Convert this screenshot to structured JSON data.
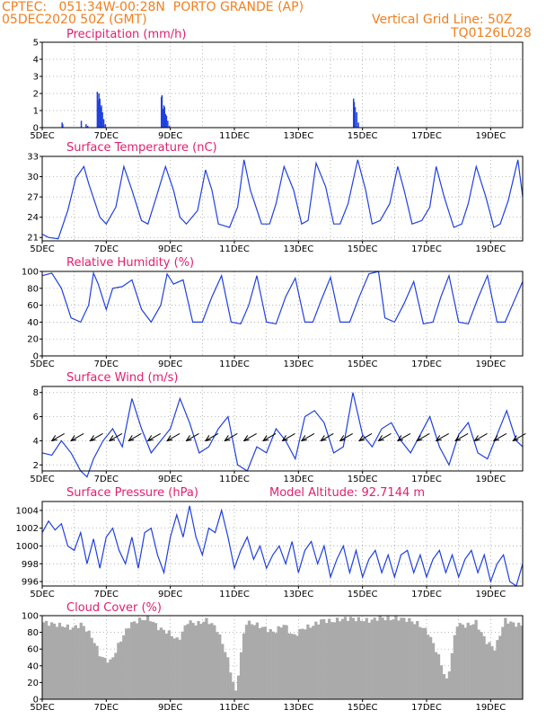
{
  "header": {
    "line1": "CPTEC:   051:34W-00:28N  PORTO GRANDE (AP)",
    "line2": "05DEC2020 50Z (GMT)",
    "grid_note": "Vertical Grid Line: 50Z",
    "code": "TQ0126L028"
  },
  "colors": {
    "header": "#f08020",
    "title": "#e0206f",
    "series": "#2040e0",
    "cloud": "#aaaaaa",
    "grid": "#999999"
  },
  "x_axis": {
    "start_day": 5,
    "end_day": 20,
    "tick_labels": [
      "5DEC",
      "7DEC",
      "9DEC",
      "11DEC",
      "13DEC",
      "15DEC",
      "17DEC",
      "19DEC"
    ]
  },
  "chart_data": [
    {
      "type": "bar",
      "title": "Precipitation (mm/h)",
      "ylim": [
        0,
        5
      ],
      "yticks": [
        0,
        1,
        2,
        3,
        4,
        5
      ],
      "series": [
        {
          "x": [
            5.6,
            5.62,
            6.2,
            6.35,
            6.4,
            6.7,
            6.72,
            6.75,
            6.78,
            6.8,
            6.83,
            6.86,
            6.9,
            6.95,
            8.7,
            8.72,
            8.75,
            8.78,
            8.8,
            8.83,
            8.86,
            8.9,
            8.95,
            14.7,
            14.72,
            14.75,
            14.8,
            14.85
          ],
          "values": [
            0.3,
            0.2,
            0.4,
            0.2,
            0.1,
            2.1,
            1.6,
            2.0,
            1.7,
            1.2,
            1.3,
            0.9,
            0.5,
            0.2,
            1.8,
            1.9,
            1.1,
            1.3,
            1.2,
            0.8,
            0.7,
            0.4,
            0.1,
            1.7,
            1.5,
            1.2,
            0.9,
            0.3
          ]
        }
      ]
    },
    {
      "type": "line",
      "title": "Surface Temperature (nC)",
      "ylim": [
        20.5,
        33
      ],
      "yticks": [
        21,
        24,
        27,
        30,
        33
      ],
      "series": [
        {
          "x": [
            5,
            5.2,
            5.5,
            5.8,
            6.05,
            6.3,
            6.45,
            6.8,
            7,
            7.3,
            7.55,
            7.8,
            8.1,
            8.3,
            8.5,
            8.85,
            9.1,
            9.3,
            9.5,
            9.85,
            10.1,
            10.3,
            10.5,
            10.85,
            11.1,
            11.3,
            11.5,
            11.85,
            12.1,
            12.3,
            12.55,
            12.85,
            13.1,
            13.3,
            13.55,
            13.85,
            14.1,
            14.3,
            14.55,
            14.85,
            15.1,
            15.3,
            15.55,
            15.85,
            16.1,
            16.3,
            16.55,
            16.85,
            17.1,
            17.3,
            17.55,
            17.85,
            18.1,
            18.3,
            18.55,
            18.85,
            19.1,
            19.3,
            19.55,
            19.85,
            20
          ],
          "values": [
            21.5,
            21,
            20.8,
            25,
            29.8,
            31.5,
            29,
            24,
            23,
            25.5,
            31.5,
            28,
            23.5,
            23,
            26,
            31.5,
            28,
            24,
            23,
            25,
            31,
            28,
            23,
            22.5,
            25.5,
            32.5,
            28,
            23,
            23,
            26,
            31.5,
            28,
            23,
            23.5,
            32,
            28.5,
            23,
            23,
            26,
            32.5,
            28,
            23,
            23.5,
            26,
            31.5,
            28,
            23,
            23.5,
            25.5,
            31.5,
            27,
            22.5,
            23,
            26,
            31.5,
            27,
            22.5,
            23,
            26.5,
            32.5,
            27
          ]
        }
      ]
    },
    {
      "type": "line",
      "title": "Relative Humidity (%)",
      "ylim": [
        0,
        100
      ],
      "yticks": [
        0,
        20,
        40,
        60,
        80,
        100
      ],
      "series": [
        {
          "x": [
            5,
            5.3,
            5.6,
            5.9,
            6.2,
            6.45,
            6.6,
            6.75,
            7,
            7.2,
            7.5,
            7.8,
            8.1,
            8.4,
            8.7,
            8.9,
            9.1,
            9.4,
            9.7,
            10,
            10.3,
            10.6,
            10.9,
            11.2,
            11.45,
            11.7,
            12,
            12.3,
            12.6,
            12.9,
            13.2,
            13.45,
            13.7,
            14,
            14.3,
            14.6,
            14.9,
            15.2,
            15.5,
            15.7,
            16,
            16.3,
            16.6,
            16.9,
            17.2,
            17.45,
            17.7,
            18,
            18.3,
            18.6,
            18.9,
            19.2,
            19.45,
            19.7,
            20
          ],
          "values": [
            95,
            98,
            80,
            45,
            40,
            60,
            98,
            85,
            55,
            80,
            82,
            90,
            55,
            40,
            60,
            97,
            85,
            90,
            40,
            40,
            70,
            95,
            40,
            38,
            60,
            95,
            40,
            38,
            70,
            92,
            40,
            40,
            65,
            93,
            40,
            40,
            70,
            97,
            100,
            45,
            40,
            62,
            88,
            38,
            40,
            70,
            95,
            40,
            38,
            68,
            95,
            40,
            40,
            62,
            88
          ]
        }
      ]
    },
    {
      "type": "line",
      "title": "Surface Wind (m/s)",
      "ylim": [
        1.5,
        8.5
      ],
      "yticks": [
        2,
        4,
        6,
        8
      ],
      "series": [
        {
          "x": [
            5,
            5.3,
            5.6,
            5.9,
            6.2,
            6.4,
            6.6,
            6.9,
            7.2,
            7.5,
            7.8,
            8.1,
            8.4,
            8.7,
            9,
            9.3,
            9.6,
            9.9,
            10.2,
            10.5,
            10.8,
            11.1,
            11.4,
            11.7,
            12,
            12.3,
            12.6,
            12.9,
            13.2,
            13.5,
            13.8,
            14.1,
            14.4,
            14.7,
            15,
            15.3,
            15.6,
            15.9,
            16.2,
            16.5,
            16.8,
            17.1,
            17.4,
            17.7,
            18,
            18.3,
            18.6,
            18.9,
            19.2,
            19.5,
            19.8,
            20
          ],
          "values": [
            3,
            2.8,
            4,
            3,
            1.5,
            1,
            2.5,
            4,
            5,
            3.5,
            7.5,
            5,
            3,
            4,
            5,
            7.5,
            5.5,
            3,
            3.5,
            5,
            6,
            2,
            1.5,
            3.5,
            3,
            5,
            4,
            2.5,
            6,
            6.5,
            5.5,
            3,
            3.5,
            8,
            4.5,
            3.5,
            5,
            5.5,
            4,
            3,
            4.5,
            6,
            3.5,
            2,
            4.5,
            5.5,
            3,
            2.5,
            4.5,
            6.5,
            4,
            3.5
          ]
        }
      ],
      "wind_barbs": {
        "note": "wind direction arrows along 4 m/s line"
      }
    },
    {
      "type": "line",
      "title": "Surface Pressure (hPa)",
      "annotation": "Model Altitude: 92.7144 m",
      "ylim": [
        995.5,
        1005
      ],
      "yticks": [
        996,
        998,
        1000,
        1002,
        1004
      ],
      "series": [
        {
          "x": [
            5,
            5.2,
            5.4,
            5.6,
            5.8,
            6,
            6.2,
            6.4,
            6.6,
            6.8,
            7,
            7.2,
            7.4,
            7.6,
            7.8,
            8,
            8.2,
            8.4,
            8.6,
            8.8,
            9,
            9.2,
            9.4,
            9.6,
            9.8,
            10,
            10.2,
            10.4,
            10.6,
            10.8,
            11,
            11.2,
            11.4,
            11.6,
            11.8,
            12,
            12.2,
            12.4,
            12.6,
            12.8,
            13,
            13.2,
            13.4,
            13.6,
            13.8,
            14,
            14.2,
            14.4,
            14.6,
            14.8,
            15,
            15.2,
            15.4,
            15.6,
            15.8,
            16,
            16.2,
            16.4,
            16.6,
            16.8,
            17,
            17.2,
            17.4,
            17.6,
            17.8,
            18,
            18.2,
            18.4,
            18.6,
            18.8,
            19,
            19.2,
            19.4,
            19.6,
            19.8,
            20
          ],
          "values": [
            1001.5,
            1002.8,
            1001.8,
            1002.5,
            1000,
            999.5,
            1001.5,
            998,
            1000.8,
            997.5,
            1001,
            1002,
            999.5,
            998,
            1001,
            997.5,
            1001.5,
            1002,
            999,
            997,
            1001,
            1003.5,
            1001,
            1004.5,
            1001,
            999,
            1002,
            1001.5,
            1004,
            1001,
            997.5,
            999.5,
            1001,
            998.5,
            1000,
            997.5,
            999,
            1000,
            998,
            1000.5,
            997,
            999.5,
            1000.5,
            998,
            1000,
            996.5,
            998.5,
            1000,
            997,
            999.5,
            996.5,
            998.5,
            999.5,
            997,
            999,
            996.5,
            999,
            999.5,
            997,
            999,
            996.5,
            998.5,
            999.5,
            997,
            999,
            996.5,
            998.5,
            999.5,
            997,
            999,
            996,
            998,
            999,
            996,
            995.5,
            998
          ]
        }
      ]
    },
    {
      "type": "area",
      "title": "Cloud Cover (%)",
      "ylim": [
        0,
        100
      ],
      "yticks": [
        0,
        20,
        40,
        60,
        80,
        100
      ],
      "series": [
        {
          "x": [
            5,
            5.3,
            5.6,
            5.9,
            6.2,
            6.5,
            6.8,
            7.1,
            7.4,
            7.7,
            8,
            8.3,
            8.6,
            8.9,
            9.2,
            9.5,
            9.8,
            10.1,
            10.4,
            10.7,
            11,
            11.3,
            11.6,
            11.9,
            12.2,
            12.5,
            12.8,
            13.1,
            13.4,
            13.7,
            14,
            14.3,
            14.6,
            14.9,
            15.2,
            15.5,
            15.8,
            16.1,
            16.4,
            16.7,
            17,
            17.3,
            17.6,
            17.9,
            18.2,
            18.5,
            18.8,
            19.1,
            19.4,
            19.7,
            20
          ],
          "values": [
            92,
            90,
            88,
            85,
            90,
            75,
            50,
            45,
            70,
            90,
            95,
            97,
            85,
            80,
            70,
            93,
            90,
            95,
            85,
            55,
            8,
            92,
            90,
            85,
            80,
            90,
            75,
            85,
            88,
            95,
            93,
            96,
            97,
            95,
            94,
            98,
            96,
            97,
            95,
            90,
            80,
            55,
            20,
            90,
            88,
            92,
            70,
            60,
            95,
            90,
            88
          ]
        }
      ]
    }
  ]
}
